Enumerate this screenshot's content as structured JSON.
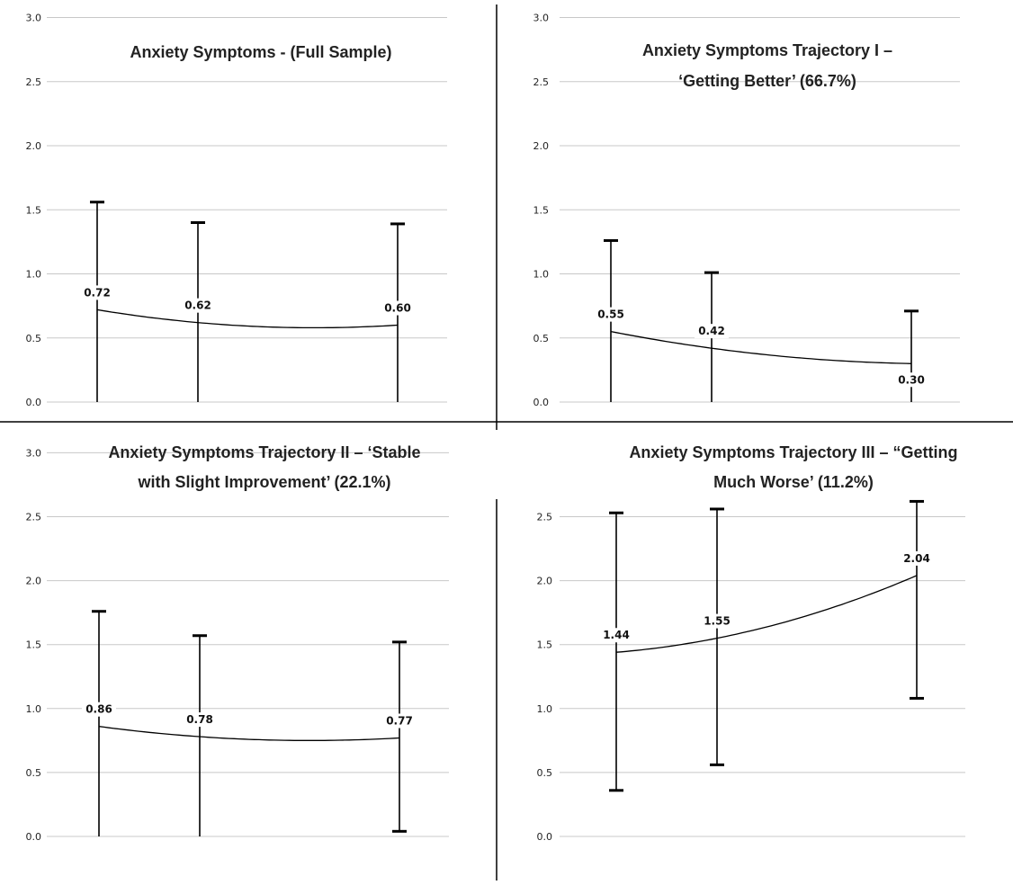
{
  "chart_data": [
    {
      "type": "line",
      "title": [
        "Anxiety Symptoms - (Full Sample)"
      ],
      "ylim": [
        0,
        3
      ],
      "yticks": [
        "0.0",
        "0.5",
        "1.0",
        "1.5",
        "2.0",
        "2.5",
        "3.0"
      ],
      "grid": true,
      "points": [
        {
          "label": "0.72",
          "y": 0.72,
          "err_low": 0.0,
          "err_high": 1.56
        },
        {
          "label": "0.62",
          "y": 0.62,
          "err_low": 0.0,
          "err_high": 1.4
        },
        {
          "label": "0.60",
          "y": 0.6,
          "err_low": 0.0,
          "err_high": 1.39
        }
      ]
    },
    {
      "type": "line",
      "title": [
        "Anxiety Symptoms Trajectory I –",
        "‘Getting Better’ (66.7%)"
      ],
      "ylim": [
        0,
        3
      ],
      "yticks": [
        "0.0",
        "0.5",
        "1.0",
        "1.5",
        "2.0",
        "2.5",
        "3.0"
      ],
      "grid": true,
      "points": [
        {
          "label": "0.55",
          "y": 0.55,
          "err_low": 0.0,
          "err_high": 1.26
        },
        {
          "label": "0.42",
          "y": 0.42,
          "err_low": 0.0,
          "err_high": 1.01
        },
        {
          "label": "0.30",
          "y": 0.3,
          "err_low": 0.0,
          "err_high": 0.71
        }
      ]
    },
    {
      "type": "line",
      "title": [
        "Anxiety Symptoms Trajectory II – ‘Stable",
        "with Slight Improvement’ (22.1%)"
      ],
      "ylim": [
        0,
        3
      ],
      "yticks": [
        "0.0",
        "0.5",
        "1.0",
        "1.5",
        "2.0",
        "2.5",
        "3.0"
      ],
      "grid": true,
      "points": [
        {
          "label": "0.86",
          "y": 0.86,
          "err_low": 0.0,
          "err_high": 1.76
        },
        {
          "label": "0.78",
          "y": 0.78,
          "err_low": 0.0,
          "err_high": 1.57
        },
        {
          "label": "0.77",
          "y": 0.77,
          "err_low": 0.04,
          "err_high": 1.52
        }
      ]
    },
    {
      "type": "line",
      "title": [
        "Anxiety Symptoms Trajectory III – “Getting",
        "Much Worse’ (11.2%)"
      ],
      "ylim": [
        0,
        2.5
      ],
      "yticks": [
        "0.0",
        "0.5",
        "1.0",
        "1.5",
        "2.0",
        "2.5"
      ],
      "grid": true,
      "points": [
        {
          "label": "1.44",
          "y": 1.44,
          "err_low": 0.36,
          "err_high": 2.53
        },
        {
          "label": "1.55",
          "y": 1.55,
          "err_low": 0.56,
          "err_high": 2.56
        },
        {
          "label": "2.04",
          "y": 2.04,
          "err_low": 1.08,
          "err_high": 2.62
        }
      ]
    }
  ]
}
